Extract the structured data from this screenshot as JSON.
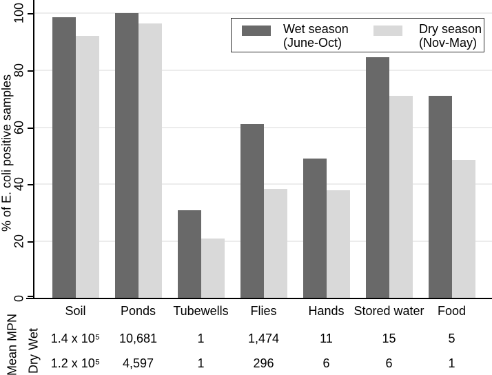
{
  "chart_data": {
    "type": "bar",
    "title": "",
    "ylabel": "% of E. coli positive samples",
    "xlabel": "",
    "ylim": [
      0,
      100
    ],
    "yticks": [
      0,
      20,
      40,
      60,
      80,
      100
    ],
    "grid": true,
    "legend_position": "top-right",
    "categories": [
      "Soil",
      "Ponds",
      "Tubewells",
      "Flies",
      "Hands",
      "Stored water",
      "Food"
    ],
    "series": [
      {
        "name": "Wet season (June-Oct)",
        "color": "#696969",
        "values": [
          98.5,
          100,
          31,
          61,
          49,
          84.5,
          71
        ]
      },
      {
        "name": "Dry season (Nov-May)",
        "color": "#d9d9d9",
        "values": [
          92,
          96.5,
          21,
          38.5,
          38,
          71,
          48.5
        ]
      }
    ]
  },
  "legend": {
    "items": [
      {
        "line1": "Wet season",
        "line2": "(June-Oct)",
        "color": "#696969"
      },
      {
        "line1": "Dry season",
        "line2": "(Nov-May)",
        "color": "#d9d9d9"
      }
    ]
  },
  "table": {
    "row_group_label": "Mean MPN",
    "rows": [
      {
        "label": "Wet",
        "values": [
          "1.4 x 10⁵",
          "10,681",
          "1",
          "1,474",
          "11",
          "15",
          "5"
        ]
      },
      {
        "label": "Dry",
        "values": [
          "1.2 x 10⁵",
          "4,597",
          "1",
          "296",
          "6",
          "6",
          "1"
        ]
      }
    ]
  },
  "colors": {
    "wet_bar": "#696969",
    "dry_bar": "#d9d9d9",
    "gridline": "#ececec",
    "axis": "#000000",
    "background": "#ffffff"
  }
}
